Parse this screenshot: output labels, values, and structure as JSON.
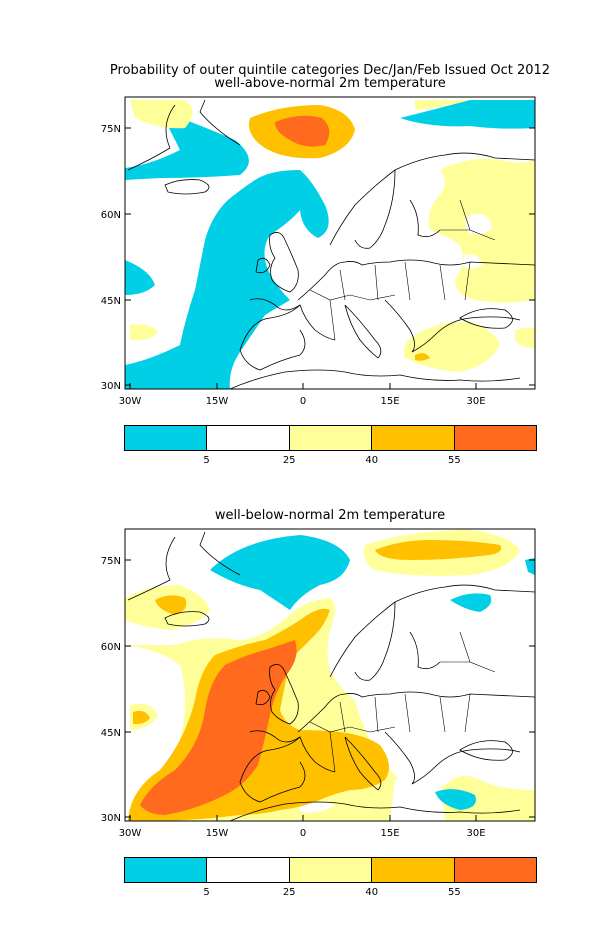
{
  "titles": {
    "main": "Probability of outer quintile categories Dec/Jan/Feb Issued Oct 2012",
    "panel_top": "well-above-normal 2m temperature",
    "panel_bottom": "well-below-normal 2m temperature"
  },
  "axes": {
    "lat_labels": [
      "75N",
      "60N",
      "45N",
      "30N"
    ],
    "lon_labels": [
      "30W",
      "15W",
      "0",
      "15E",
      "30E"
    ]
  },
  "colorbar": {
    "labels": [
      "5",
      "25",
      "40",
      "55"
    ],
    "colors": [
      "#00cfe6",
      "#ffffff",
      "#ffff99",
      "#ffc000",
      "#ff6a1f"
    ]
  }
}
